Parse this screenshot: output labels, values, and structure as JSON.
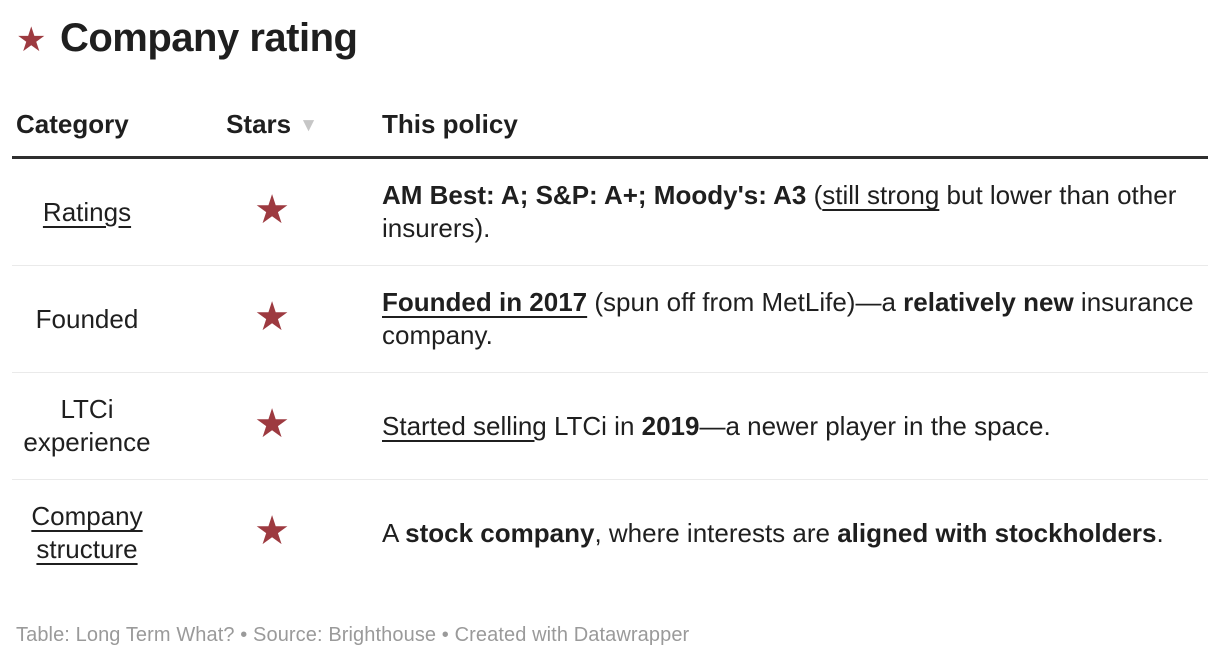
{
  "accent_color": "#9d3a40",
  "title": {
    "star_icon": "★",
    "text": "Company rating"
  },
  "table": {
    "star_char": "★",
    "columns": [
      {
        "label": "Category"
      },
      {
        "label": "Stars",
        "sort_arrow": "▼",
        "sort_state": "descending"
      },
      {
        "label": "This policy"
      }
    ],
    "rows": [
      {
        "category": [
          {
            "text": "Ratings",
            "underline": true
          }
        ],
        "stars": 1,
        "policy": [
          {
            "text": "AM Best: A; S&P: A+; Moody's: A3",
            "bold": true
          },
          {
            "text": " ("
          },
          {
            "text": "still strong",
            "underline": true
          },
          {
            "text": " but lower than other insurers)."
          }
        ]
      },
      {
        "category": [
          {
            "text": "Founded"
          }
        ],
        "stars": 1,
        "policy": [
          {
            "text": "Founded in 2017",
            "bold": true,
            "underline": true
          },
          {
            "text": " (spun off from MetLife)—a "
          },
          {
            "text": "relatively new",
            "bold": true
          },
          {
            "text": " insurance company."
          }
        ]
      },
      {
        "category": [
          {
            "text": "LTCi experience"
          }
        ],
        "stars": 1,
        "policy": [
          {
            "text": "Started selling",
            "underline": true
          },
          {
            "text": " LTCi in "
          },
          {
            "text": "2019",
            "bold": true
          },
          {
            "text": "—a newer player in the space."
          }
        ]
      },
      {
        "category": [
          {
            "text": "Company structure",
            "underline": true
          }
        ],
        "stars": 1,
        "policy": [
          {
            "text": "A "
          },
          {
            "text": "stock company",
            "bold": true
          },
          {
            "text": ", where interests are "
          },
          {
            "text": "aligned with stockholders",
            "bold": true
          },
          {
            "text": "."
          }
        ]
      }
    ]
  },
  "footer": {
    "text": "Table: Long Term What? • Source: Brighthouse • Created with Datawrapper"
  },
  "chart_data": {
    "type": "table",
    "title": "Company rating",
    "columns": [
      "Category",
      "Stars",
      "This policy"
    ],
    "sorted_by": {
      "column": "Stars",
      "direction": "descending"
    },
    "rows": [
      {
        "category": "Ratings",
        "stars": 1,
        "policy": "AM Best: A; S&P: A+; Moody's: A3 (still strong but lower than other insurers)."
      },
      {
        "category": "Founded",
        "stars": 1,
        "policy": "Founded in 2017 (spun off from MetLife)—a relatively new insurance company."
      },
      {
        "category": "LTCi experience",
        "stars": 1,
        "policy": "Started selling LTCi in 2019—a newer player in the space."
      },
      {
        "category": "Company structure",
        "stars": 1,
        "policy": "A stock company, where interests are aligned with stockholders."
      }
    ],
    "attribution": "Table: Long Term What? • Source: Brighthouse • Created with Datawrapper"
  }
}
